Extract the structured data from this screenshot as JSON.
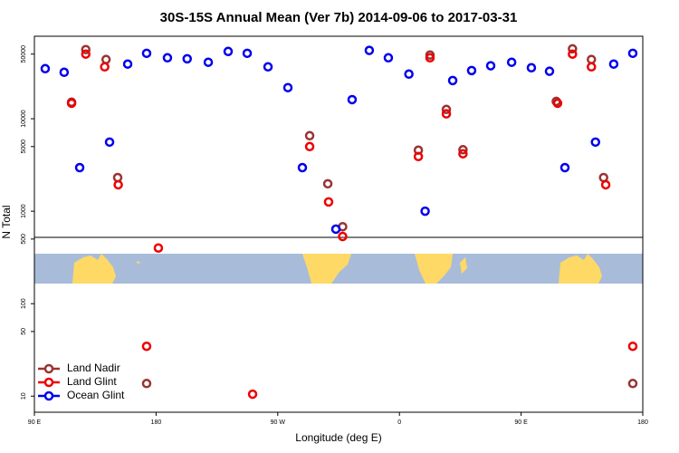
{
  "chart_data": {
    "type": "scatter",
    "title": "30S-15S Annual Mean (Ver 7b)   2014-09-06 to 2017-03-31",
    "x_label": "Longitude (deg E)",
    "y_label": "N Total",
    "xlim": [
      90,
      540
    ],
    "xticks": [
      {
        "value": 90,
        "label": "90 E"
      },
      {
        "value": 180,
        "label": "180"
      },
      {
        "value": 270,
        "label": "90 W"
      },
      {
        "value": 360,
        "label": "0"
      },
      {
        "value": 450,
        "label": "90 E"
      },
      {
        "value": 540,
        "label": "180"
      }
    ],
    "ylim": [
      6.7,
      78000
    ],
    "yticks": [
      10,
      50,
      100,
      500,
      1000,
      5000,
      10000,
      50000
    ],
    "log_y": true,
    "legend": "lower left",
    "series": [
      {
        "name": "Land Nadir",
        "color": "#993333",
        "x": [
          117.5,
          128,
          143,
          151.6,
          173,
          293.6,
          307,
          318,
          374,
          382.6,
          394.7,
          407,
          476,
          488,
          502,
          511,
          532.6
        ],
        "values": [
          15100,
          56000,
          43700,
          2310,
          13.7,
          6550,
          1980,
          680,
          4570,
          48900,
          12600,
          4620,
          15400,
          57000,
          43700,
          2310,
          13.7
        ]
      },
      {
        "name": "Land Glint",
        "color": "#ee0000",
        "x": [
          117.5,
          128,
          142,
          152,
          181.7,
          173,
          251.4,
          293.6,
          307.6,
          318,
          374,
          382.6,
          394.7,
          407,
          477,
          488,
          502,
          512.6,
          532.6
        ],
        "values": [
          14700,
          50000,
          36400,
          1930,
          400,
          34.6,
          10.5,
          5000,
          1260,
          533,
          3900,
          45600,
          11300,
          4180,
          14700,
          50000,
          36400,
          1930,
          34.6
        ]
      },
      {
        "name": "Ocean Glint",
        "color": "#0000ee",
        "x": [
          98,
          112,
          123.5,
          145.6,
          159,
          173,
          188.4,
          203,
          218.6,
          233.3,
          247.4,
          262.8,
          277.5,
          288.2,
          313,
          325,
          337.7,
          351.8,
          367,
          379,
          399.4,
          413.4,
          427.5,
          443,
          457.6,
          471,
          482.4,
          505,
          518.5,
          532.6
        ],
        "values": [
          34800,
          31800,
          2960,
          5590,
          39000,
          51000,
          45600,
          44500,
          40800,
          53400,
          51000,
          36400,
          21700,
          2960,
          640,
          16100,
          54800,
          45600,
          30400,
          1000,
          25900,
          33200,
          37400,
          40800,
          35600,
          32600,
          2960,
          5590,
          39000,
          51000
        ]
      }
    ]
  }
}
